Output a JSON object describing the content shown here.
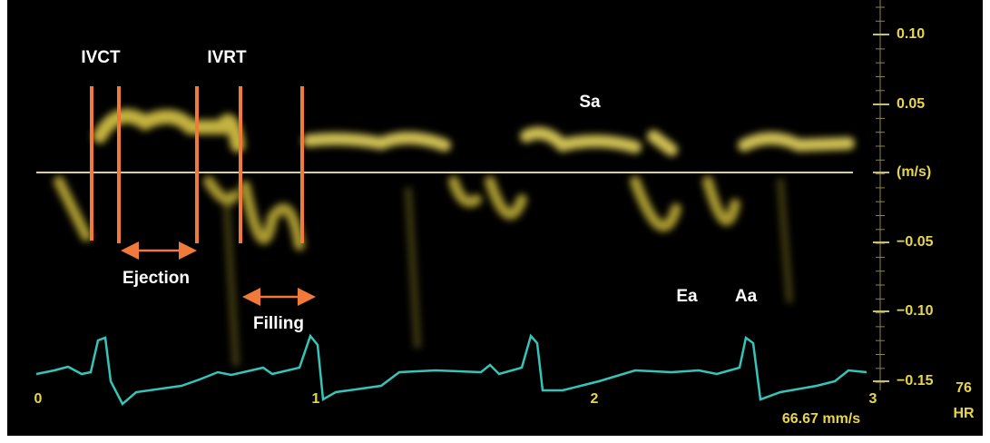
{
  "annotations": {
    "ivct": "IVCT",
    "ivrt": "IVRT",
    "ejection": "Ejection",
    "filling": "Filling",
    "sa": "Sa",
    "ea": "Ea",
    "aa": "Aa"
  },
  "velocity_axis": {
    "ticks": [
      "0.10",
      "0.05",
      "(m/s)",
      "−0.05",
      "−0.10",
      "−0.15"
    ]
  },
  "time_axis": {
    "ticks": [
      "0",
      "1",
      "2",
      "3"
    ]
  },
  "heart_rate": {
    "value": "76",
    "label": "HR"
  },
  "sweep_speed": "66.67 mm/s"
}
